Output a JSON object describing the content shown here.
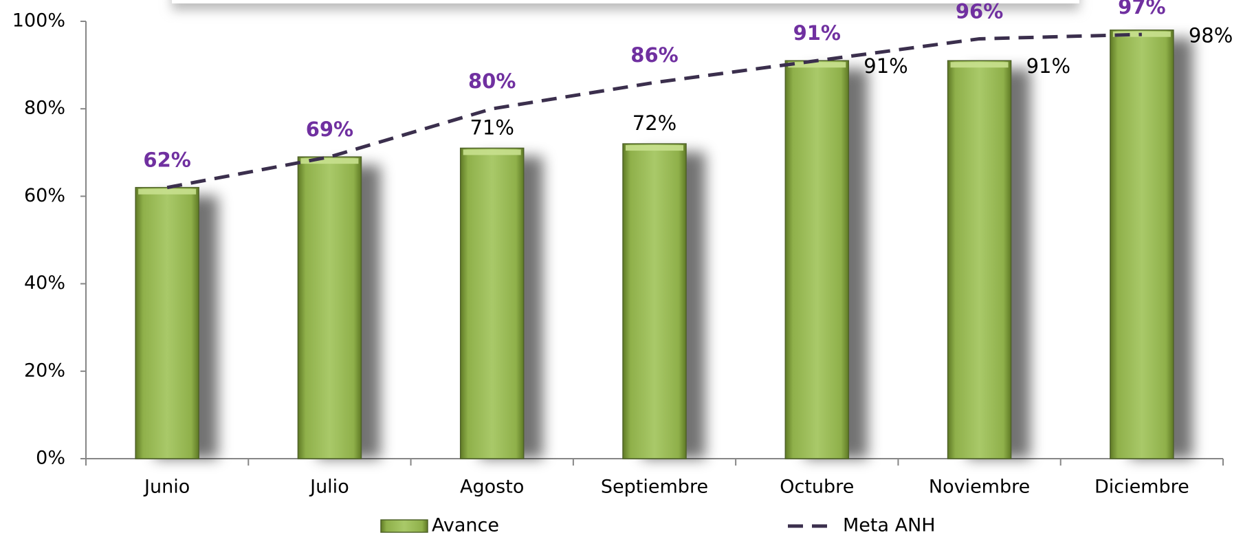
{
  "chart_data": {
    "type": "bar_line",
    "categories": [
      "Junio",
      "Julio",
      "Agosto",
      "Septiembre",
      "Octubre",
      "Noviembre",
      "Diciembre"
    ],
    "series": [
      {
        "name": "Avance",
        "type": "bar",
        "color": "#9bbb59",
        "values": [
          62,
          69,
          71,
          72,
          91,
          91,
          98
        ],
        "value_labels": [
          null,
          null,
          "71%",
          "72%",
          "91%",
          "91%",
          "98%"
        ]
      },
      {
        "name": "Meta ANH",
        "type": "line",
        "color": "#3b2f4d",
        "label_color": "#7030a0",
        "values": [
          62,
          69,
          80,
          86,
          91,
          96,
          97
        ],
        "value_labels": [
          "62%",
          "69%",
          "80%",
          "86%",
          "91%",
          "96%",
          "97%"
        ]
      }
    ],
    "ylim": [
      0,
      100
    ],
    "yticks": [
      {
        "value": 0,
        "label": "0%"
      },
      {
        "value": 20,
        "label": "20%"
      },
      {
        "value": 40,
        "label": "40%"
      },
      {
        "value": 60,
        "label": "60%"
      },
      {
        "value": 80,
        "label": "80%"
      },
      {
        "value": 100,
        "label": "100%"
      }
    ],
    "legend": "bottom"
  }
}
